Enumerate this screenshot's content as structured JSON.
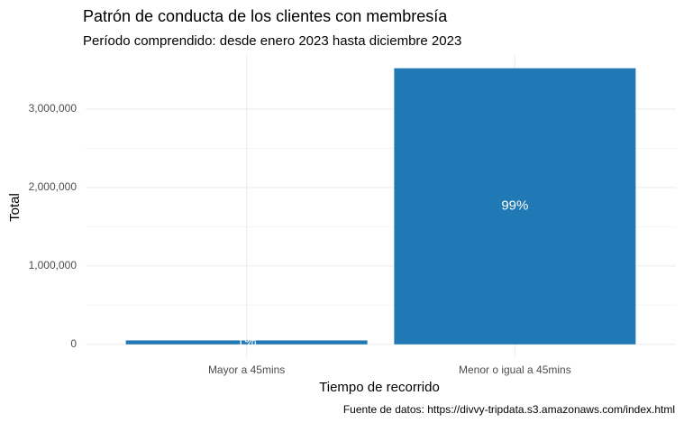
{
  "chart_data": {
    "type": "bar",
    "title": "Patrón de conducta de los clientes  con membresía",
    "subtitle": "Período comprendido: desde enero 2023 hasta diciembre 2023",
    "x_label": "Tiempo de recorrido",
    "y_label": "Total",
    "caption": "Fuente de datos: https://divvy-tripdata.s3.amazonaws.com/index.html",
    "categories": [
      "Mayor a 45mins",
      "Menor o igual a 45mins"
    ],
    "values": [
      50000,
      3520000
    ],
    "labels": [
      "1%",
      "99%"
    ],
    "color": "#2078b4",
    "ylim": [
      -175000,
      3700000
    ],
    "yticks": [
      {
        "value": 0,
        "label": "0"
      },
      {
        "value": 1000000,
        "label": "1,000,000"
      },
      {
        "value": 2000000,
        "label": "2,000,000"
      },
      {
        "value": 3000000,
        "label": "3,000,000"
      }
    ],
    "grid": true
  }
}
